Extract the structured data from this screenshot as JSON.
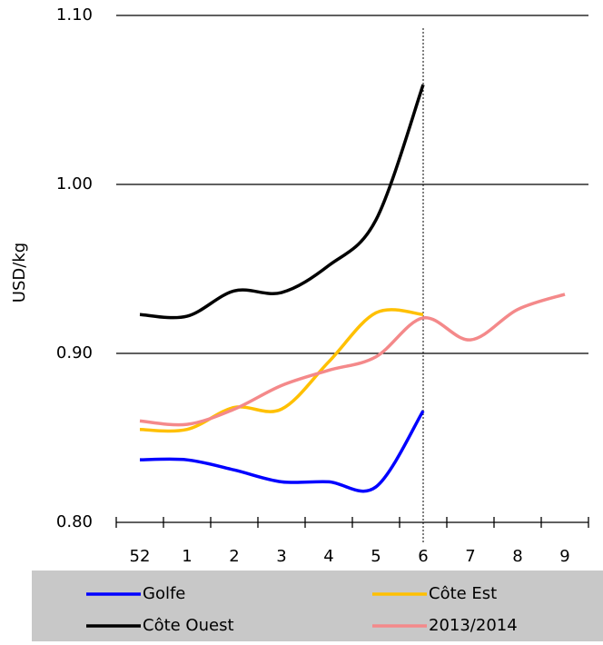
{
  "chart_data": {
    "type": "line",
    "y_label": "USD/kg",
    "categories": [
      "52",
      "1",
      "2",
      "3",
      "4",
      "5",
      "6",
      "7",
      "8",
      "9"
    ],
    "series": [
      {
        "name": "Golfe",
        "color": "#0000ff",
        "values": [
          0.837,
          0.837,
          0.831,
          0.824,
          0.824,
          0.821,
          0.866,
          null,
          null,
          null
        ]
      },
      {
        "name": "Côte Est",
        "color": "#ffc000",
        "values": [
          0.855,
          0.855,
          0.868,
          0.867,
          0.895,
          0.924,
          0.923,
          null,
          null,
          null
        ]
      },
      {
        "name": "Côte Ouest",
        "color": "#000000",
        "values": [
          0.923,
          0.922,
          0.937,
          0.936,
          0.952,
          0.979,
          1.059,
          null,
          null,
          null
        ]
      },
      {
        "name": "2013/2014",
        "color": "#f4898a",
        "values": [
          0.86,
          0.858,
          0.867,
          0.881,
          0.89,
          0.898,
          0.921,
          0.908,
          0.926,
          0.935
        ]
      }
    ],
    "ylim": [
      0.8,
      1.1
    ],
    "yticks": [
      {
        "value": 0.8,
        "label": "0.80"
      },
      {
        "value": 0.9,
        "label": "0.90"
      },
      {
        "value": 1.0,
        "label": "1.00"
      },
      {
        "value": 1.1,
        "label": "1.10"
      }
    ],
    "grid": true,
    "vline": "6",
    "legend": "bottom"
  }
}
